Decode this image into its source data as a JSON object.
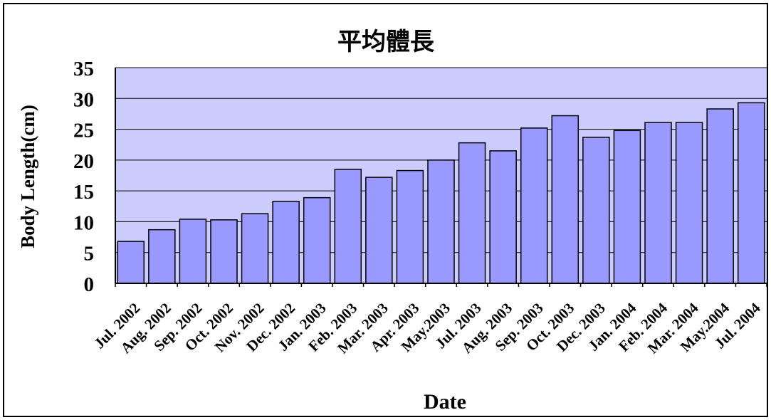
{
  "chart_data": {
    "type": "bar",
    "title": "平均體長",
    "xlabel": "Date",
    "ylabel": "Body Length(cm)",
    "ylim": [
      0,
      35
    ],
    "yticks": [
      "0",
      "5",
      "10",
      "15",
      "20",
      "25",
      "30",
      "35"
    ],
    "grid": true,
    "colors": {
      "plot_background": "#ccccff",
      "bar_fill": "#9999ff",
      "bar_stroke": "#000000",
      "grid": "#000000"
    },
    "categories": [
      "Jul. 2002",
      "Aug. 2002",
      "Sep. 2002",
      "Oct. 2002",
      "Nov. 2002",
      "Dec. 2002",
      "Jan. 2003",
      "Feb. 2003",
      "Mar. 2003",
      "Apr. 2003",
      "May.2003",
      "Jul. 2003",
      "Aug. 2003",
      "Sep. 2003",
      "Oct. 2003",
      "Dec. 2003",
      "Jan. 2004",
      "Feb. 2004",
      "Mar. 2004",
      "May.2004",
      "Jul. 2004"
    ],
    "values": [
      6.8,
      8.7,
      10.4,
      10.3,
      11.3,
      13.3,
      13.9,
      18.5,
      17.2,
      18.3,
      20.0,
      22.8,
      21.5,
      25.2,
      27.2,
      23.7,
      24.8,
      26.1,
      26.1,
      28.3,
      29.3
    ]
  }
}
